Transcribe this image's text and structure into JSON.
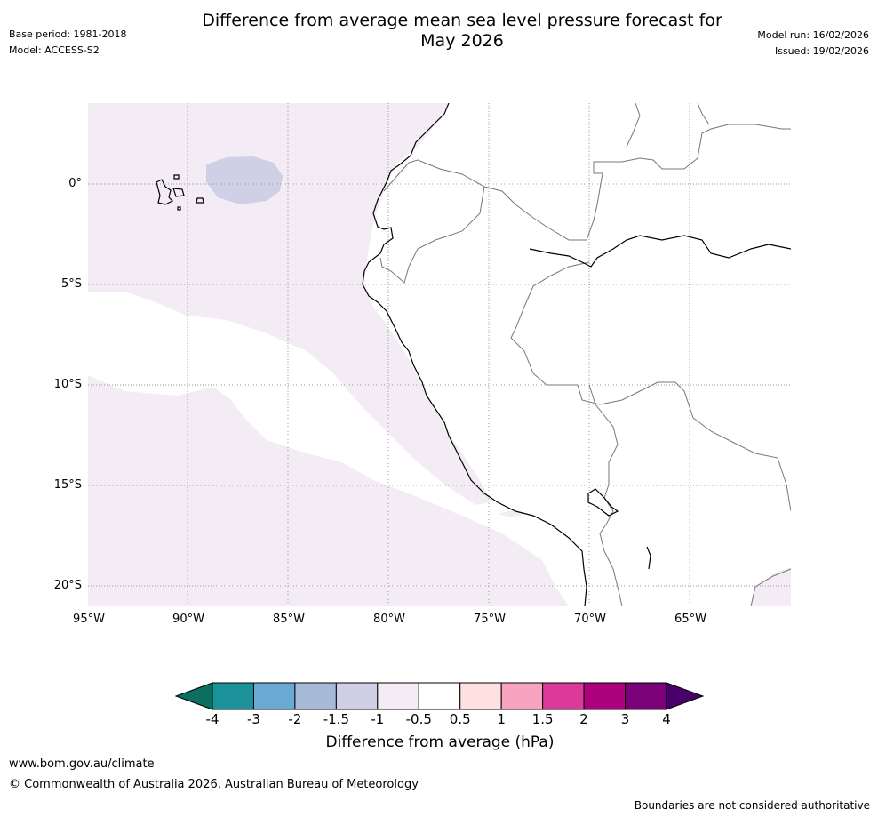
{
  "header": {
    "title_line1": "Difference from average mean sea level pressure forecast for",
    "title_line2": "May 2026",
    "base_period": "Base period: 1981-2018",
    "model": "Model: ACCESS-S2",
    "model_run": "Model run: 16/02/2026",
    "issued": "Issued: 19/02/2026"
  },
  "map": {
    "y_ticks": [
      "0°",
      "5°S",
      "10°S",
      "15°S",
      "20°S"
    ],
    "x_ticks": [
      "95°W",
      "90°W",
      "85°W",
      "80°W",
      "75°W",
      "70°W",
      "65°W"
    ]
  },
  "colorbar": {
    "label": "Difference from average (hPa)",
    "ticks": [
      "-4",
      "-3",
      "-2",
      "-1.5",
      "-1",
      "-0.5",
      "0.5",
      "1",
      "1.5",
      "2",
      "3",
      "4"
    ],
    "colors": [
      "#0b6e5f",
      "#1b9299",
      "#6aaad2",
      "#a6bad8",
      "#cfd0e6",
      "#f3ecf5",
      "#ffffff",
      "#fde0df",
      "#f8a4c0",
      "#dc3a9b",
      "#ae017e",
      "#7a0177",
      "#49006a"
    ]
  },
  "footer": {
    "url": "www.bom.gov.au/climate",
    "copyright": "© Commonwealth of Australia 2026, Australian Bureau of Meteorology",
    "disclaimer": "Boundaries are not considered authoritative"
  }
}
